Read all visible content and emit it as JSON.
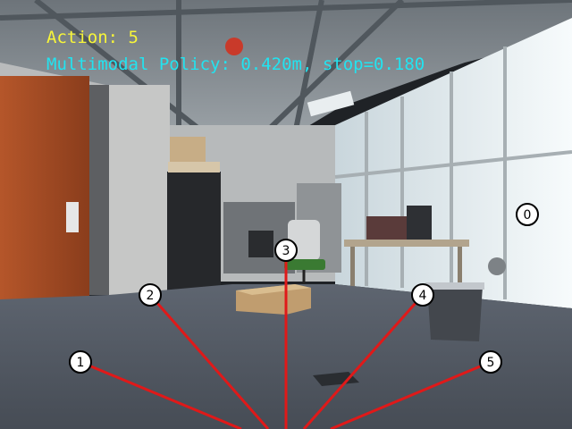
{
  "hud": {
    "action_label": "Action: 5",
    "policy_label": "Multimodal Policy: 0.420m, stop=0.180",
    "action_color": "#f7f53a",
    "policy_color": "#22e3f0"
  },
  "markers": [
    {
      "label": "0"
    },
    {
      "label": "1"
    },
    {
      "label": "2"
    },
    {
      "label": "3"
    },
    {
      "label": "4"
    },
    {
      "label": "5"
    }
  ],
  "ray_color": "#e01919"
}
